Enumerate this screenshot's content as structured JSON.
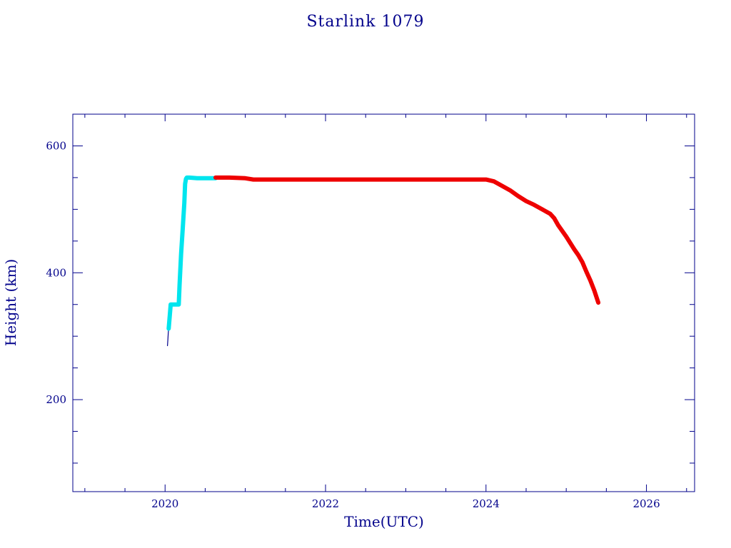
{
  "chart_data": {
    "type": "line",
    "title": "Starlink 1079",
    "xlabel": "Time(UTC)",
    "ylabel": "Height (km)",
    "xlim": [
      2018.85,
      2026.6
    ],
    "ylim": [
      55,
      650
    ],
    "x_ticks": [
      2020,
      2022,
      2024,
      2026
    ],
    "x_tick_labels": [
      "2020",
      "2022",
      "2024",
      "2026"
    ],
    "x_minor_step": 0.5,
    "y_ticks": [
      200,
      400,
      600
    ],
    "y_tick_labels": [
      "200",
      "400",
      "600"
    ],
    "y_minor_step": 50,
    "grid": false,
    "colors": {
      "frame": "#00008b",
      "text": "#00008b",
      "series_launch": "#00008b",
      "series_raising": "#00e5ee",
      "series_operational": "#ee0000"
    },
    "series": [
      {
        "color": "#00008b",
        "style": "thin",
        "x": [
          2020.03,
          2020.035,
          2020.04,
          2020.045
        ],
        "y": [
          285,
          295,
          305,
          312
        ]
      },
      {
        "color": "#00e5ee",
        "style": "thick",
        "x": [
          2020.045,
          2020.06,
          2020.07,
          2020.08,
          2020.1,
          2020.15,
          2020.17,
          2020.18,
          2020.2,
          2020.22,
          2020.24,
          2020.25,
          2020.26,
          2020.27,
          2020.3,
          2020.4,
          2020.5,
          2020.63
        ],
        "y": [
          312,
          335,
          350,
          350,
          350,
          350,
          350,
          380,
          430,
          470,
          510,
          540,
          548,
          550,
          550,
          549,
          549,
          549
        ]
      },
      {
        "color": "#ee0000",
        "style": "thick",
        "x": [
          2020.63,
          2020.8,
          2021.0,
          2021.1,
          2021.5,
          2022.0,
          2022.5,
          2023.0,
          2023.5,
          2023.9,
          2024.0,
          2024.1,
          2024.2,
          2024.3,
          2024.4,
          2024.5,
          2024.6,
          2024.7,
          2024.8,
          2024.85,
          2024.9,
          2025.0,
          2025.1,
          2025.15,
          2025.2,
          2025.25,
          2025.3,
          2025.35,
          2025.4
        ],
        "y": [
          550,
          550,
          549,
          547,
          547,
          547,
          547,
          547,
          547,
          547,
          547,
          544,
          537,
          530,
          521,
          513,
          507,
          500,
          493,
          486,
          475,
          457,
          437,
          428,
          417,
          402,
          388,
          372,
          353
        ]
      }
    ]
  }
}
